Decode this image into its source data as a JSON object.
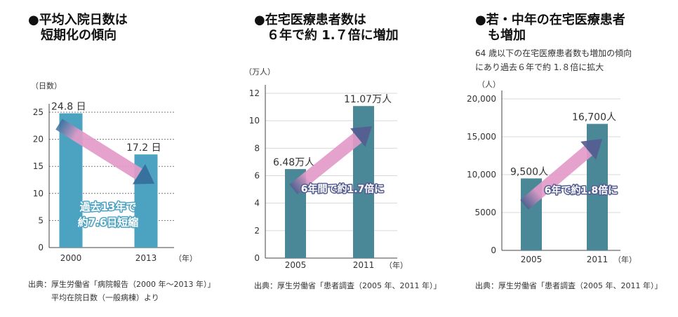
{
  "chart_data": [
    {
      "type": "bar",
      "title": "●平均入院日数は\n　短期化の傾向",
      "y_unit": "（日数）",
      "x_unit": "（年）",
      "categories": [
        "2000",
        "2013"
      ],
      "values": [
        24.8,
        17.2
      ],
      "value_labels": [
        "24.8 日",
        "17.2 日"
      ],
      "ylim": [
        0,
        25
      ],
      "yticks": [
        "0",
        "5",
        "10",
        "15",
        "20",
        "25"
      ],
      "ytick_values": [
        0,
        5,
        10,
        15,
        20,
        25
      ],
      "annotation": [
        "過去13年で",
        "約7.6日短縮"
      ],
      "source": "出典：厚生労働省「病院報告（2000 年～2013 年）」\n　　　平均在院日数（一般病棟）より",
      "colors": {
        "bar": "#4ca3c1",
        "arrow_pink": "#e29ac8",
        "arrow_dark": "#356d9b",
        "annotation": "#ffffff"
      }
    },
    {
      "type": "bar",
      "title": "●在宅医療患者数は\n　６年で約 1.７倍に増加",
      "y_unit": "（万人）",
      "x_unit": "（年）",
      "categories": [
        "2005",
        "2011"
      ],
      "values": [
        6.48,
        11.07
      ],
      "value_labels": [
        "6.48万人",
        "11.07万人"
      ],
      "ylim": [
        0,
        12
      ],
      "yticks": [
        "0",
        "2",
        "4",
        "6",
        "8",
        "10",
        "12"
      ],
      "ytick_values": [
        0,
        2,
        4,
        6,
        8,
        10,
        12
      ],
      "annotation": [
        "6年間で約1.7倍に"
      ],
      "source": "出典：厚生労働省「患者調査（2005 年、2011 年）」",
      "colors": {
        "bar": "#4a8797",
        "arrow_pink": "#e29ac8",
        "arrow_dark": "#545c90",
        "annotation": "#ffffff"
      }
    },
    {
      "type": "bar",
      "title": "●若・中年の在宅医療患者\n　も増加",
      "subtitle": "64 歳以下の在宅医療患者数も増加の傾向\nにあり過去６年で約 1.８倍に拡大",
      "y_unit": "（人）",
      "x_unit": "（年）",
      "categories": [
        "2005",
        "2011"
      ],
      "values": [
        9500,
        16700
      ],
      "value_labels": [
        "9,500人",
        "16,700人"
      ],
      "ylim": [
        0,
        20000
      ],
      "yticks": [
        "0",
        "5000",
        "10,000",
        "15,000",
        "20,000"
      ],
      "ytick_values": [
        0,
        5000,
        10000,
        15000,
        20000
      ],
      "annotation": [
        "6年で約1.8倍に"
      ],
      "source": "出典：厚生労働省「患者調査（2005 年、2011 年）」",
      "colors": {
        "bar": "#4a8797",
        "arrow_pink": "#e29ac8",
        "arrow_dark": "#545c90",
        "annotation": "#ffffff"
      }
    }
  ]
}
